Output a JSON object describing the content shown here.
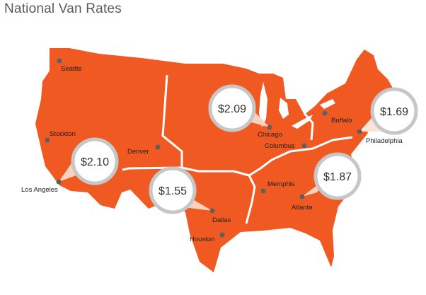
{
  "title": "National Van Rates",
  "colors": {
    "land": "#F05A22",
    "border": "#ffffff",
    "bubble_ring": "#c7c7c7",
    "bubble_fill": "#ffffff",
    "city_dot": "#5f5f5f"
  },
  "cities": {
    "seattle": "Seattle",
    "stockton": "Stockton",
    "los_angeles": "Los Angeles",
    "denver": "Denver",
    "dallas": "Dallas",
    "houston": "Houston",
    "chicago": "Chicago",
    "columbus": "Columbus",
    "memphis": "Memphis",
    "atlanta": "Atlanta",
    "buffalo": "Buffalo",
    "philadelphia": "Philadelphia"
  },
  "rates": {
    "los_angeles": "$2.10",
    "dallas": "$1.55",
    "chicago": "$2.09",
    "atlanta": "$1.87",
    "philadelphia": "$1.69"
  }
}
